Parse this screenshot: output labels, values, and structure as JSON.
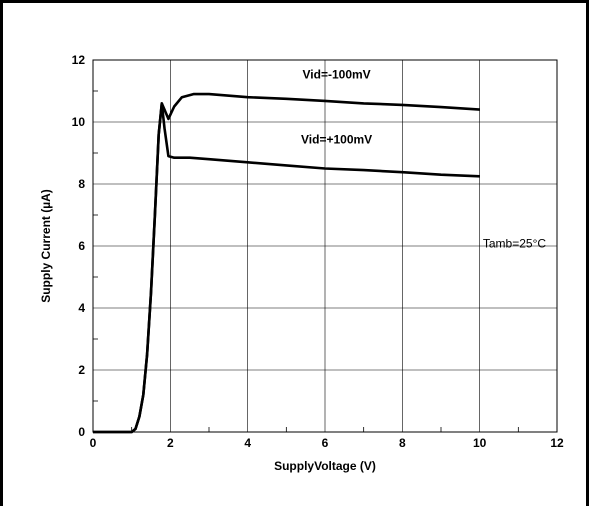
{
  "chart_data": {
    "type": "line",
    "xlabel": "SupplyVoltage (V)",
    "ylabel": "Supply Current (µA)",
    "xlim": [
      0,
      12
    ],
    "ylim": [
      0,
      12
    ],
    "x_ticks": [
      "0",
      "2",
      "4",
      "6",
      "8",
      "10",
      "12"
    ],
    "y_ticks": [
      "0",
      "2",
      "4",
      "6",
      "8",
      "10",
      "12"
    ],
    "grid": true,
    "annotations": {
      "temperature": "Tamb=25°C"
    },
    "series": [
      {
        "name": "Vid=-100mV",
        "color": "#000000",
        "points": [
          [
            0,
            0
          ],
          [
            1.0,
            0.0
          ],
          [
            1.1,
            0.1
          ],
          [
            1.2,
            0.5
          ],
          [
            1.3,
            1.2
          ],
          [
            1.4,
            2.5
          ],
          [
            1.5,
            4.5
          ],
          [
            1.6,
            7.0
          ],
          [
            1.7,
            9.6
          ],
          [
            1.78,
            10.6
          ],
          [
            1.85,
            10.4
          ],
          [
            1.95,
            10.1
          ],
          [
            2.1,
            10.5
          ],
          [
            2.3,
            10.8
          ],
          [
            2.6,
            10.9
          ],
          [
            3.0,
            10.9
          ],
          [
            4.0,
            10.8
          ],
          [
            5.0,
            10.75
          ],
          [
            6.0,
            10.68
          ],
          [
            7.0,
            10.6
          ],
          [
            8.0,
            10.55
          ],
          [
            9.0,
            10.48
          ],
          [
            10.0,
            10.4
          ]
        ]
      },
      {
        "name": "Vid=+100mV",
        "color": "#000000",
        "points": [
          [
            0,
            0
          ],
          [
            1.0,
            0.0
          ],
          [
            1.1,
            0.1
          ],
          [
            1.2,
            0.5
          ],
          [
            1.3,
            1.2
          ],
          [
            1.4,
            2.5
          ],
          [
            1.5,
            4.5
          ],
          [
            1.6,
            7.0
          ],
          [
            1.7,
            9.6
          ],
          [
            1.78,
            10.6
          ],
          [
            1.85,
            9.8
          ],
          [
            1.95,
            8.9
          ],
          [
            2.1,
            8.85
          ],
          [
            2.5,
            8.85
          ],
          [
            3.0,
            8.8
          ],
          [
            4.0,
            8.7
          ],
          [
            5.0,
            8.6
          ],
          [
            6.0,
            8.5
          ],
          [
            7.0,
            8.45
          ],
          [
            8.0,
            8.38
          ],
          [
            9.0,
            8.3
          ],
          [
            10.0,
            8.25
          ]
        ]
      }
    ]
  }
}
